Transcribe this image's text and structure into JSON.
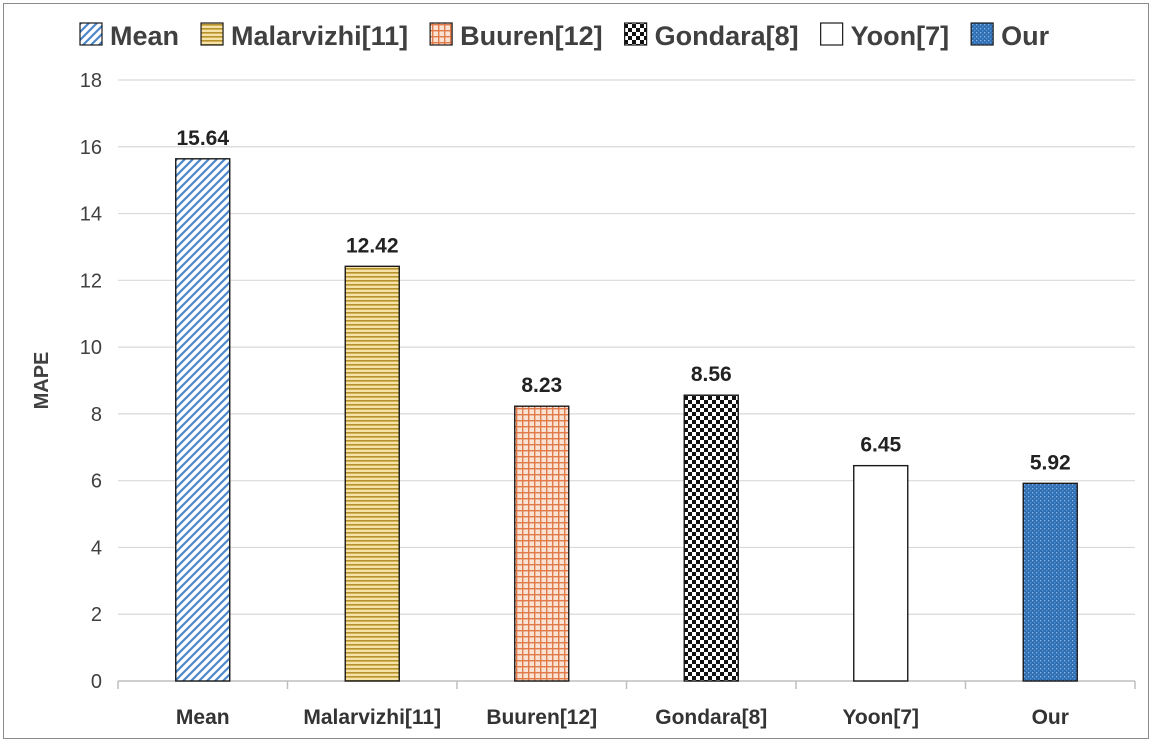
{
  "chart_data": {
    "type": "bar",
    "title": "",
    "xlabel": "",
    "ylabel": "MAPE",
    "ylim": [
      0,
      18
    ],
    "yticks": [
      0,
      2,
      4,
      6,
      8,
      10,
      12,
      14,
      16,
      18
    ],
    "grid": true,
    "legend_position": "top",
    "categories": [
      "Mean",
      "Malarvizhi[11]",
      "Buuren[12]",
      "Gondara[8]",
      "Yoon[7]",
      "Our"
    ],
    "values": [
      15.64,
      12.42,
      8.23,
      8.56,
      6.45,
      5.92
    ],
    "value_labels": [
      "15.64",
      "12.42",
      "8.23",
      "8.56",
      "6.45",
      "5.92"
    ],
    "legend": [
      "Mean",
      "Malarvizhi[11]",
      "Buuren[12]",
      "Gondara[8]",
      "Yoon[7]",
      "Our"
    ],
    "patterns": [
      "diagonal-stripes",
      "horizontal-lines",
      "grid",
      "dots",
      "empty",
      "dotted-fill"
    ],
    "colors": [
      "#4a86c8",
      "#c9a032",
      "#e07a4a",
      "#111111",
      "#ffffff",
      "#2e6fb5"
    ]
  }
}
